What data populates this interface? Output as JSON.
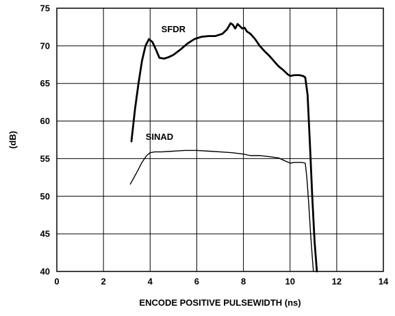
{
  "chart_data": {
    "type": "line",
    "title": "",
    "xlabel": "ENCODE POSITIVE PULSEWIDTH (ns)",
    "ylabel": "(dB)",
    "xlim": [
      0,
      14
    ],
    "ylim": [
      40,
      75
    ],
    "xticks": [
      0,
      2,
      4,
      6,
      8,
      10,
      12,
      14
    ],
    "yticks": [
      40,
      45,
      50,
      55,
      60,
      65,
      70,
      75
    ],
    "grid": true,
    "legend": "none",
    "series": [
      {
        "name": "SFDR",
        "color": "#000000",
        "x": [
          3.2,
          3.35,
          3.5,
          3.65,
          3.8,
          3.95,
          4.1,
          4.25,
          4.4,
          4.6,
          4.8,
          5.0,
          5.3,
          5.6,
          5.9,
          6.2,
          6.5,
          6.8,
          7.1,
          7.3,
          7.45,
          7.55,
          7.65,
          7.75,
          7.85,
          7.95,
          8.05,
          8.15,
          8.3,
          8.5,
          8.7,
          8.9,
          9.1,
          9.3,
          9.5,
          9.7,
          9.9,
          10.0,
          10.2,
          10.4,
          10.55,
          10.65,
          10.75,
          10.85,
          10.95,
          11.05,
          11.15
        ],
        "values": [
          57.3,
          61.5,
          65.0,
          68.0,
          70.0,
          70.9,
          70.5,
          69.5,
          68.4,
          68.3,
          68.5,
          68.8,
          69.5,
          70.3,
          70.9,
          71.2,
          71.3,
          71.3,
          71.6,
          72.2,
          73.0,
          72.8,
          72.3,
          72.9,
          72.6,
          72.3,
          72.4,
          71.9,
          71.6,
          70.9,
          70.0,
          69.3,
          68.7,
          68.0,
          67.3,
          66.8,
          66.2,
          66.0,
          66.1,
          66.1,
          66.0,
          65.8,
          63.5,
          57.0,
          50.0,
          44.0,
          40.0
        ]
      },
      {
        "name": "SINAD",
        "color": "#000000",
        "x": [
          3.15,
          3.4,
          3.65,
          3.85,
          4.0,
          4.2,
          4.5,
          5.0,
          5.5,
          6.0,
          6.5,
          7.0,
          7.5,
          8.0,
          8.3,
          8.7,
          9.0,
          9.5,
          10.0,
          10.2,
          10.5,
          10.65,
          10.72,
          10.8,
          10.88,
          10.95,
          11.0
        ],
        "values": [
          51.6,
          53.0,
          54.5,
          55.4,
          55.8,
          55.9,
          55.9,
          56.0,
          56.1,
          56.1,
          56.0,
          55.9,
          55.8,
          55.6,
          55.4,
          55.4,
          55.3,
          55.1,
          54.4,
          54.5,
          54.5,
          54.4,
          52.5,
          49.0,
          45.0,
          42.0,
          40.0
        ]
      }
    ],
    "annotations": [
      {
        "text": "SFDR",
        "x": 5.0,
        "y": 71.8
      },
      {
        "text": "SINAD",
        "x": 4.4,
        "y": 57.5
      }
    ]
  }
}
